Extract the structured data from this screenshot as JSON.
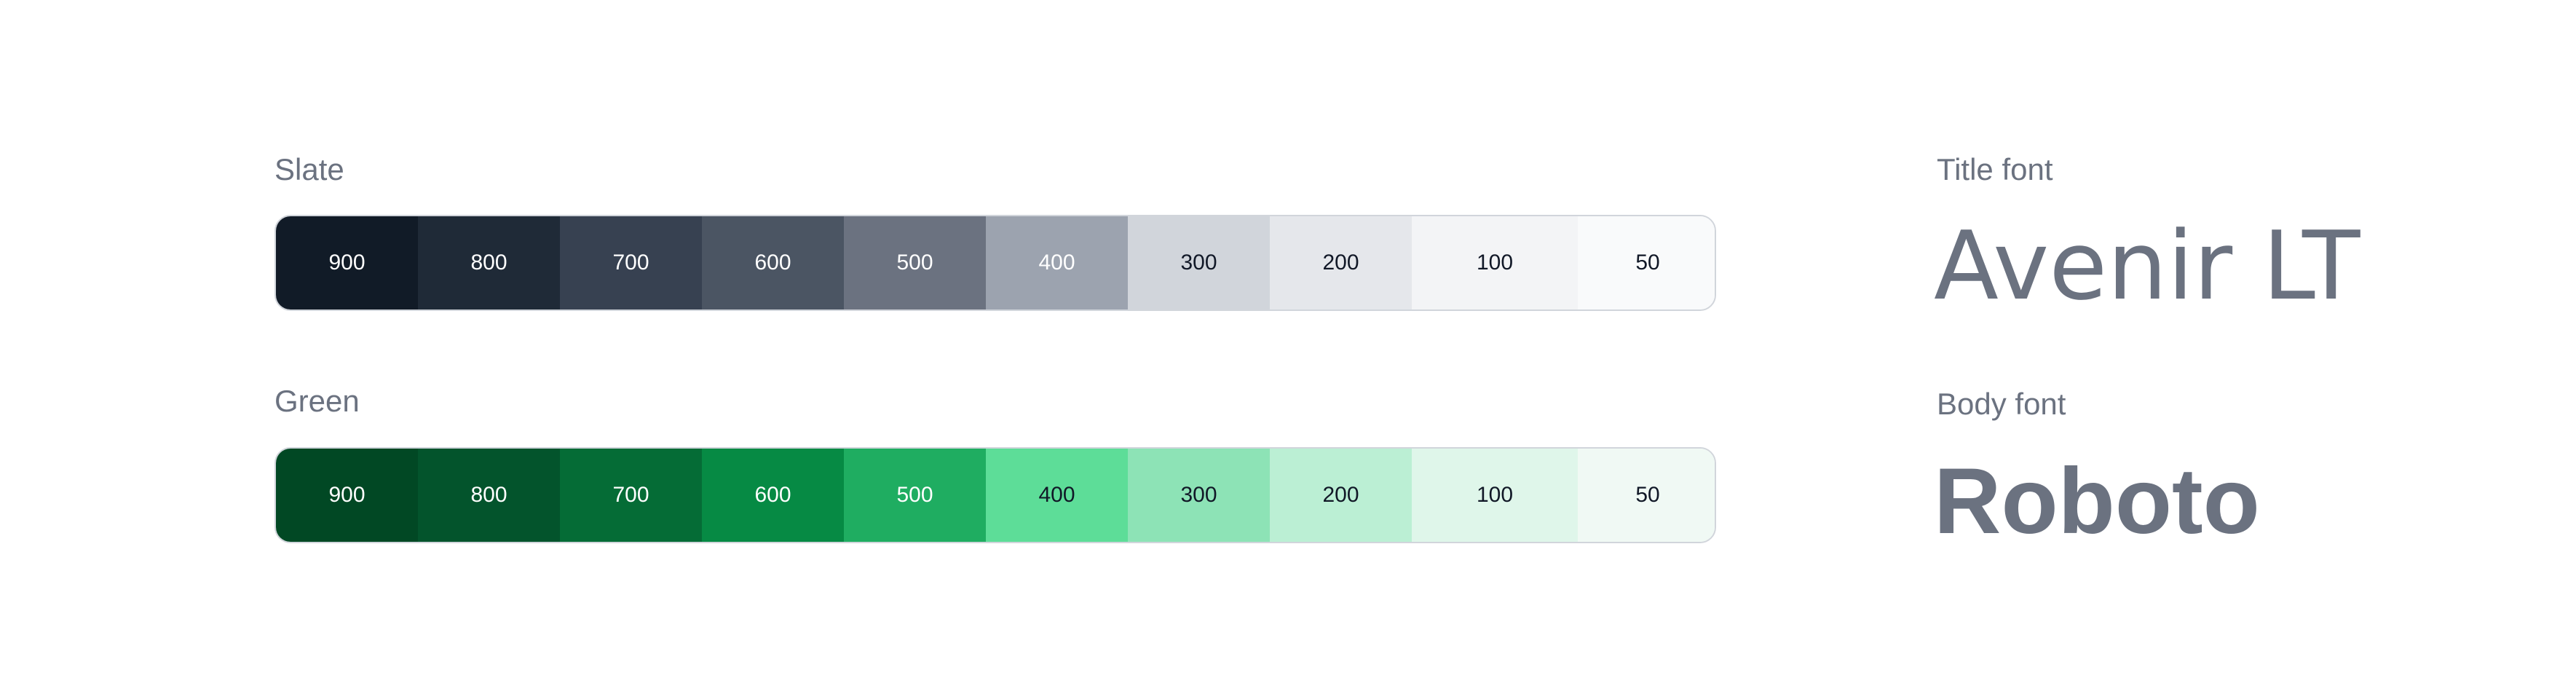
{
  "palettes": [
    {
      "name": "Slate",
      "swatches": [
        {
          "label": "900",
          "color": "#111b27",
          "text_color": "#ffffff"
        },
        {
          "label": "800",
          "color": "#1f2a37",
          "text_color": "#ffffff"
        },
        {
          "label": "700",
          "color": "#374151",
          "text_color": "#ffffff"
        },
        {
          "label": "600",
          "color": "#4b5563",
          "text_color": "#ffffff"
        },
        {
          "label": "500",
          "color": "#6b7280",
          "text_color": "#ffffff"
        },
        {
          "label": "400",
          "color": "#9ca3af",
          "text_color": "#ffffff"
        },
        {
          "label": "300",
          "color": "#d1d5db",
          "text_color": "#111827"
        },
        {
          "label": "200",
          "color": "#e5e7eb",
          "text_color": "#111827"
        },
        {
          "label": "100",
          "color": "#f3f4f6",
          "text_color": "#111827"
        },
        {
          "label": "50",
          "color": "#f9fafb",
          "text_color": "#111827"
        }
      ]
    },
    {
      "name": "Green",
      "swatches": [
        {
          "label": "900",
          "color": "#014824",
          "text_color": "#ffffff"
        },
        {
          "label": "800",
          "color": "#03542c",
          "text_color": "#ffffff"
        },
        {
          "label": "700",
          "color": "#056c36",
          "text_color": "#ffffff"
        },
        {
          "label": "600",
          "color": "#068a44",
          "text_color": "#ffffff"
        },
        {
          "label": "500",
          "color": "#1fad61",
          "text_color": "#ffffff"
        },
        {
          "label": "400",
          "color": "#5ddd98",
          "text_color": "#111827"
        },
        {
          "label": "300",
          "color": "#8de3b6",
          "text_color": "#111827"
        },
        {
          "label": "200",
          "color": "#bbefd4",
          "text_color": "#111827"
        },
        {
          "label": "100",
          "color": "#dff6ea",
          "text_color": "#111827"
        },
        {
          "label": "50",
          "color": "#f0f9f4",
          "text_color": "#111827"
        }
      ]
    }
  ],
  "fonts": {
    "title": {
      "label": "Title font",
      "sample": "Avenir LT"
    },
    "body": {
      "label": "Body font",
      "sample": "Roboto"
    }
  }
}
